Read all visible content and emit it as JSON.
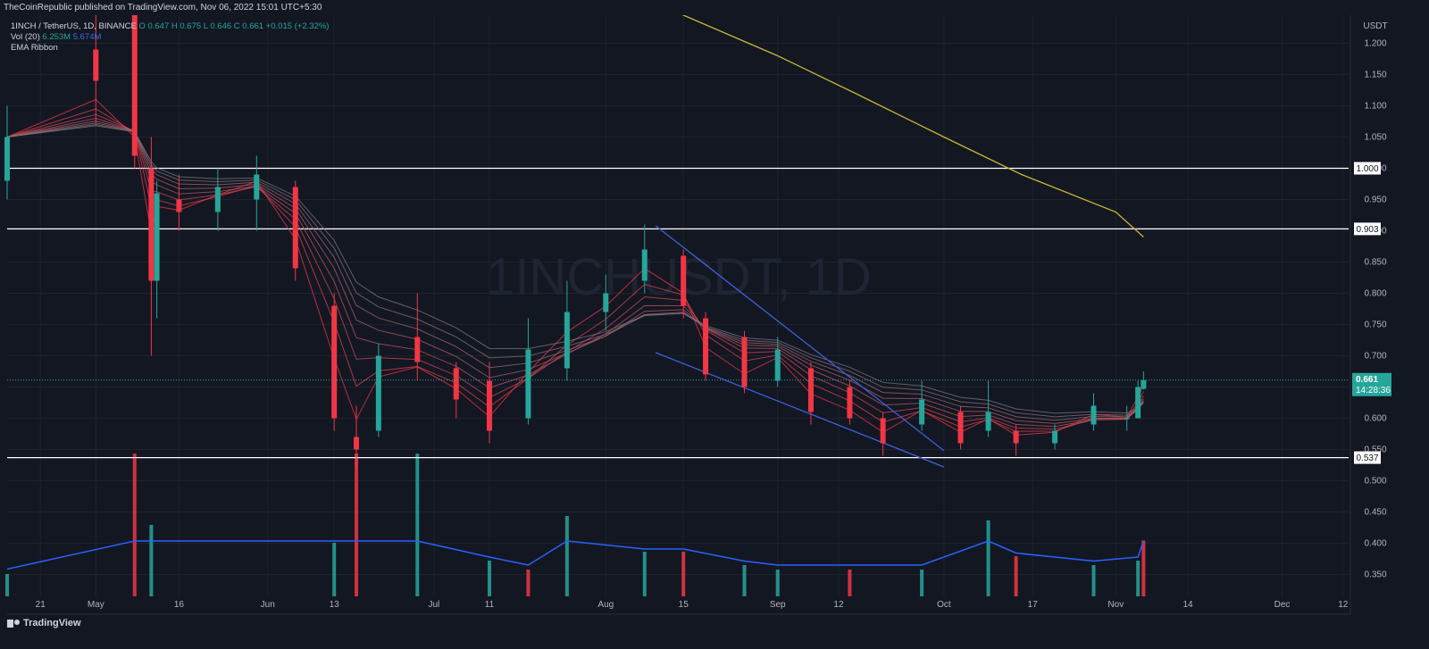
{
  "header": {
    "published": "TheCoinRepublic published on TradingView.com, Nov 06, 2022 15:01 UTC+5:30"
  },
  "legend": {
    "symbol": "1INCH / TetherUS, 1D, BINANCE",
    "ohlc": "O 0.647 H 0.675 L 0.646 C 0.661 +0.015 (+2.32%)",
    "vol_label": "Vol (20)",
    "vol_value": "6.253M",
    "vol_ma": "5.674M",
    "ema_label": "EMA Ribbon"
  },
  "branding": {
    "name": "TradingView"
  },
  "colors": {
    "background": "#131722",
    "up": "#26a69a",
    "down": "#f23645",
    "grid": "#1e222d",
    "axis_text": "#b2b5be",
    "ma_line": "#2962ff",
    "ema200": "#c9b635",
    "trendline": "#3f5fd9",
    "level_line": "#ffffff"
  },
  "chart_data": {
    "type": "candlestick",
    "title": "1INCH / TetherUS, 1D",
    "watermark": "1INCHUSDT, 1D",
    "yaxis": {
      "unit": "USDT",
      "ylim": [
        0.315,
        1.245
      ],
      "ticks": [
        1.2,
        1.15,
        1.1,
        1.05,
        1.0,
        0.95,
        0.9,
        0.85,
        0.8,
        0.75,
        0.7,
        0.65,
        0.6,
        0.55,
        0.5,
        0.45,
        0.4,
        0.35
      ]
    },
    "xaxis": {
      "ticks": [
        "21",
        "May",
        "16",
        "Jun",
        "13",
        "Jul",
        "11",
        "Aug",
        "15",
        "Sep",
        "12",
        "Oct",
        "17",
        "Nov",
        "14",
        "Dec",
        "12"
      ],
      "range": [
        "2022-04-15",
        "2022-12-13"
      ]
    },
    "horizontal_levels": [
      1.0,
      0.903,
      0.537
    ],
    "price_labels": [
      {
        "value": 1.0,
        "label": "1.000"
      },
      {
        "value": 0.903,
        "label": "0.903"
      },
      {
        "value": 0.537,
        "label": "0.537"
      }
    ],
    "last_price": {
      "label": "0.661",
      "countdown": "14:28:36",
      "value": 0.661
    },
    "ema200": {
      "points": [
        [
          "2022-08-08",
          1.27
        ],
        [
          "2022-08-15",
          1.245
        ],
        [
          "2022-09-01",
          1.18
        ],
        [
          "2022-09-15",
          1.12
        ],
        [
          "2022-10-01",
          1.05
        ],
        [
          "2022-10-15",
          0.99
        ],
        [
          "2022-11-01",
          0.93
        ],
        [
          "2022-11-06",
          0.89
        ]
      ]
    },
    "falling_wedge": {
      "upper": [
        [
          "2022-08-10",
          0.908
        ],
        [
          "2022-10-01",
          0.548
        ]
      ],
      "lower": [
        [
          "2022-08-10",
          0.705
        ],
        [
          "2022-10-01",
          0.522
        ]
      ]
    },
    "candles": [
      {
        "d": "2022-04-15",
        "o": 0.98,
        "h": 1.1,
        "l": 0.95,
        "c": 1.05
      },
      {
        "d": "2022-05-01",
        "o": 1.19,
        "h": 1.25,
        "l": 1.07,
        "c": 1.14
      },
      {
        "d": "2022-05-08",
        "o": 1.25,
        "h": 1.25,
        "l": 1.0,
        "c": 1.02
      },
      {
        "d": "2022-05-11",
        "o": 1.0,
        "h": 1.05,
        "l": 0.7,
        "c": 0.82
      },
      {
        "d": "2022-05-12",
        "o": 0.82,
        "h": 0.98,
        "l": 0.76,
        "c": 0.96
      },
      {
        "d": "2022-05-16",
        "o": 0.95,
        "h": 0.99,
        "l": 0.9,
        "c": 0.93
      },
      {
        "d": "2022-05-23",
        "o": 0.93,
        "h": 1.0,
        "l": 0.9,
        "c": 0.97
      },
      {
        "d": "2022-05-30",
        "o": 0.95,
        "h": 1.02,
        "l": 0.9,
        "c": 0.99
      },
      {
        "d": "2022-06-06",
        "o": 0.97,
        "h": 0.98,
        "l": 0.82,
        "c": 0.84
      },
      {
        "d": "2022-06-13",
        "o": 0.78,
        "h": 0.8,
        "l": 0.58,
        "c": 0.6
      },
      {
        "d": "2022-06-17",
        "o": 0.57,
        "h": 0.62,
        "l": 0.52,
        "c": 0.55
      },
      {
        "d": "2022-06-21",
        "o": 0.58,
        "h": 0.72,
        "l": 0.57,
        "c": 0.7
      },
      {
        "d": "2022-06-28",
        "o": 0.73,
        "h": 0.8,
        "l": 0.66,
        "c": 0.69
      },
      {
        "d": "2022-07-05",
        "o": 0.68,
        "h": 0.69,
        "l": 0.6,
        "c": 0.63
      },
      {
        "d": "2022-07-11",
        "o": 0.66,
        "h": 0.69,
        "l": 0.56,
        "c": 0.58
      },
      {
        "d": "2022-07-18",
        "o": 0.6,
        "h": 0.76,
        "l": 0.59,
        "c": 0.71
      },
      {
        "d": "2022-07-25",
        "o": 0.68,
        "h": 0.82,
        "l": 0.66,
        "c": 0.77
      },
      {
        "d": "2022-08-01",
        "o": 0.77,
        "h": 0.83,
        "l": 0.74,
        "c": 0.8
      },
      {
        "d": "2022-08-08",
        "o": 0.82,
        "h": 0.91,
        "l": 0.8,
        "c": 0.87
      },
      {
        "d": "2022-08-15",
        "o": 0.86,
        "h": 0.87,
        "l": 0.76,
        "c": 0.78
      },
      {
        "d": "2022-08-19",
        "o": 0.76,
        "h": 0.77,
        "l": 0.66,
        "c": 0.67
      },
      {
        "d": "2022-08-26",
        "o": 0.73,
        "h": 0.74,
        "l": 0.64,
        "c": 0.65
      },
      {
        "d": "2022-09-01",
        "o": 0.66,
        "h": 0.73,
        "l": 0.65,
        "c": 0.71
      },
      {
        "d": "2022-09-07",
        "o": 0.68,
        "h": 0.69,
        "l": 0.59,
        "c": 0.61
      },
      {
        "d": "2022-09-14",
        "o": 0.65,
        "h": 0.66,
        "l": 0.59,
        "c": 0.6
      },
      {
        "d": "2022-09-20",
        "o": 0.6,
        "h": 0.61,
        "l": 0.54,
        "c": 0.56
      },
      {
        "d": "2022-09-27",
        "o": 0.59,
        "h": 0.66,
        "l": 0.58,
        "c": 0.63
      },
      {
        "d": "2022-10-04",
        "o": 0.61,
        "h": 0.62,
        "l": 0.55,
        "c": 0.56
      },
      {
        "d": "2022-10-09",
        "o": 0.58,
        "h": 0.66,
        "l": 0.57,
        "c": 0.61
      },
      {
        "d": "2022-10-14",
        "o": 0.58,
        "h": 0.59,
        "l": 0.54,
        "c": 0.56
      },
      {
        "d": "2022-10-21",
        "o": 0.56,
        "h": 0.59,
        "l": 0.55,
        "c": 0.58
      },
      {
        "d": "2022-10-28",
        "o": 0.59,
        "h": 0.64,
        "l": 0.58,
        "c": 0.62
      },
      {
        "d": "2022-11-03",
        "o": 0.6,
        "h": 0.62,
        "l": 0.58,
        "c": 0.6
      },
      {
        "d": "2022-11-05",
        "o": 0.6,
        "h": 0.66,
        "l": 0.6,
        "c": 0.65
      },
      {
        "d": "2022-11-06",
        "o": 0.647,
        "h": 0.675,
        "l": 0.646,
        "c": 0.661
      }
    ],
    "volume": {
      "unit": "M",
      "values": [
        {
          "d": "2022-04-15",
          "v": 2.5
        },
        {
          "d": "2022-05-08",
          "v": 16.0
        },
        {
          "d": "2022-05-11",
          "v": 8.0
        },
        {
          "d": "2022-06-13",
          "v": 6.0
        },
        {
          "d": "2022-06-17",
          "v": 16.0
        },
        {
          "d": "2022-06-28",
          "v": 16.0
        },
        {
          "d": "2022-07-11",
          "v": 4.0
        },
        {
          "d": "2022-07-18",
          "v": 3.0
        },
        {
          "d": "2022-07-25",
          "v": 9.0
        },
        {
          "d": "2022-08-08",
          "v": 5.0
        },
        {
          "d": "2022-08-15",
          "v": 5.0
        },
        {
          "d": "2022-08-26",
          "v": 3.5
        },
        {
          "d": "2022-09-01",
          "v": 3.0
        },
        {
          "d": "2022-09-14",
          "v": 3.0
        },
        {
          "d": "2022-09-27",
          "v": 3.0
        },
        {
          "d": "2022-10-09",
          "v": 8.5
        },
        {
          "d": "2022-10-14",
          "v": 4.5
        },
        {
          "d": "2022-10-28",
          "v": 3.5
        },
        {
          "d": "2022-11-05",
          "v": 4.0
        },
        {
          "d": "2022-11-06",
          "v": 6.253
        }
      ]
    }
  }
}
